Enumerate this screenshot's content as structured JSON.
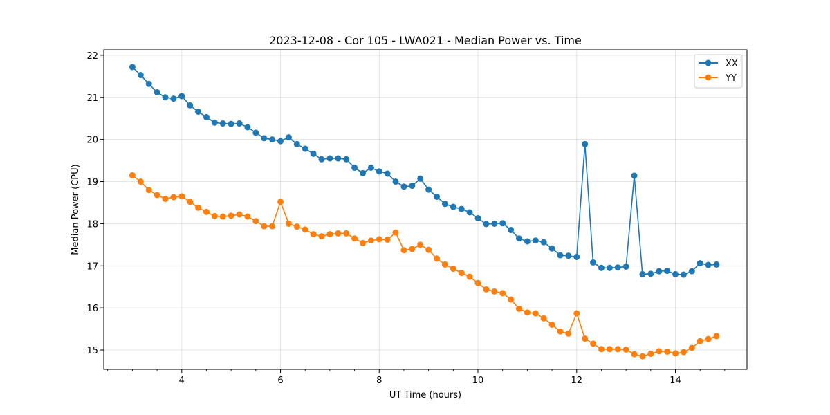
{
  "chart_data": {
    "type": "line",
    "title": "2023-12-08 - Cor 105 - LWA021 - Median Power vs. Time",
    "xlabel": "UT Time (hours)",
    "ylabel": "Median Power (CPU)",
    "xlim": [
      2.42,
      15.45
    ],
    "ylim": [
      14.54,
      22.13
    ],
    "xticks": [
      4,
      6,
      8,
      10,
      12,
      14
    ],
    "xtick_labels": [
      "4",
      "6",
      "8",
      "10",
      "12",
      "14"
    ],
    "yticks": [
      15,
      16,
      17,
      18,
      19,
      20,
      21,
      22
    ],
    "ytick_labels": [
      "15",
      "16",
      "17",
      "18",
      "19",
      "20",
      "21",
      "22"
    ],
    "grid": true,
    "legend_position": "top-right",
    "x": [
      3.0,
      3.167,
      3.333,
      3.5,
      3.667,
      3.833,
      4.0,
      4.167,
      4.333,
      4.5,
      4.667,
      4.833,
      5.0,
      5.167,
      5.333,
      5.5,
      5.667,
      5.833,
      6.0,
      6.167,
      6.333,
      6.5,
      6.667,
      6.833,
      7.0,
      7.167,
      7.333,
      7.5,
      7.667,
      7.833,
      8.0,
      8.167,
      8.333,
      8.5,
      8.667,
      8.833,
      9.0,
      9.167,
      9.333,
      9.5,
      9.667,
      9.833,
      10.0,
      10.167,
      10.333,
      10.5,
      10.667,
      10.833,
      11.0,
      11.167,
      11.333,
      11.5,
      11.667,
      11.833,
      12.0,
      12.167,
      12.333,
      12.5,
      12.667,
      12.833,
      13.0,
      13.167,
      13.333,
      13.5,
      13.667,
      13.833,
      14.0,
      14.167,
      14.333,
      14.5,
      14.667,
      14.833
    ],
    "series": [
      {
        "name": "XX",
        "color": "#1f77b4",
        "values": [
          21.72,
          21.53,
          21.32,
          21.12,
          21.0,
          20.97,
          21.03,
          20.81,
          20.66,
          20.53,
          20.4,
          20.38,
          20.37,
          20.38,
          20.29,
          20.16,
          20.03,
          20.0,
          19.96,
          20.05,
          19.89,
          19.78,
          19.66,
          19.53,
          19.55,
          19.55,
          19.53,
          19.33,
          19.2,
          19.33,
          19.24,
          19.19,
          19.0,
          18.88,
          18.9,
          19.07,
          18.81,
          18.64,
          18.47,
          18.4,
          18.35,
          18.27,
          18.13,
          17.99,
          18.0,
          18.01,
          17.85,
          17.65,
          17.58,
          17.6,
          17.56,
          17.41,
          17.25,
          17.24,
          17.21,
          19.89,
          17.08,
          16.95,
          16.95,
          16.96,
          16.98,
          19.14,
          16.8,
          16.81,
          16.87,
          16.88,
          16.8,
          16.79,
          16.87,
          17.06,
          17.02,
          17.03
        ]
      },
      {
        "name": "YY",
        "color": "#ff7f0e",
        "values": [
          19.15,
          19.0,
          18.8,
          18.68,
          18.59,
          18.63,
          18.65,
          18.52,
          18.38,
          18.28,
          18.18,
          18.17,
          18.19,
          18.22,
          18.17,
          18.06,
          17.94,
          17.94,
          18.52,
          18.0,
          17.93,
          17.86,
          17.75,
          17.7,
          17.75,
          17.77,
          17.77,
          17.65,
          17.54,
          17.6,
          17.63,
          17.62,
          17.79,
          17.37,
          17.4,
          17.5,
          17.38,
          17.17,
          17.03,
          16.93,
          16.83,
          16.74,
          16.59,
          16.44,
          16.39,
          16.35,
          16.2,
          15.98,
          15.89,
          15.87,
          15.75,
          15.6,
          15.44,
          15.39,
          15.87,
          15.27,
          15.15,
          15.02,
          15.02,
          15.02,
          15.01,
          14.9,
          14.85,
          14.91,
          14.97,
          14.96,
          14.92,
          14.95,
          15.05,
          15.21,
          15.26,
          15.33
        ]
      }
    ]
  }
}
